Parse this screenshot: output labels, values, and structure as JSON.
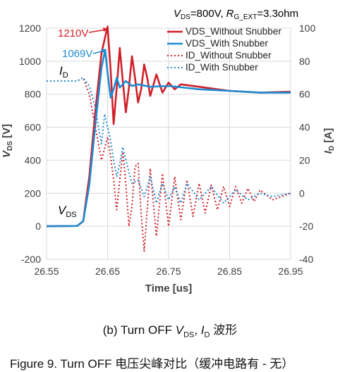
{
  "chart_data": {
    "type": "line",
    "condition": {
      "prefix": "V",
      "prefix_sub": "DS",
      "value": "=800V, ",
      "rg": "R",
      "rg_sub": "G_EXT",
      "rg_value": "=3.3ohm"
    },
    "xlabel": "Time [us]",
    "ylabel_left": {
      "main": "V",
      "sub": "DS",
      "unit": " [V]"
    },
    "ylabel_right": {
      "main": "I",
      "sub": "D",
      "unit": " [A]"
    },
    "xlim": [
      26.55,
      26.95
    ],
    "ylim_left": [
      -200,
      1200
    ],
    "ylim_right": [
      -40,
      100
    ],
    "x_ticks": [
      "26.55",
      "26.65",
      "26.75",
      "26.85",
      "26.95"
    ],
    "y_left_ticks": [
      "-200",
      "0",
      "200",
      "400",
      "600",
      "800",
      "1000",
      "1200"
    ],
    "y_right_ticks": [
      "-40",
      "-20",
      "0",
      "20",
      "40",
      "60",
      "80",
      "100"
    ],
    "grid": true,
    "legend_position": "top-right",
    "series": [
      {
        "name": "VDS_Without Snubber",
        "axis": "left",
        "color": "#d0202a",
        "style": "solid",
        "points": [
          [
            26.55,
            0
          ],
          [
            26.6,
            2
          ],
          [
            26.61,
            30
          ],
          [
            26.62,
            300
          ],
          [
            26.63,
            700
          ],
          [
            26.64,
            1050
          ],
          [
            26.65,
            1210
          ],
          [
            26.655,
            950
          ],
          [
            26.66,
            620
          ],
          [
            26.665,
            840
          ],
          [
            26.67,
            1080
          ],
          [
            26.675,
            880
          ],
          [
            26.68,
            690
          ],
          [
            26.685,
            840
          ],
          [
            26.69,
            1030
          ],
          [
            26.695,
            900
          ],
          [
            26.7,
            750
          ],
          [
            26.705,
            830
          ],
          [
            26.71,
            980
          ],
          [
            26.715,
            900
          ],
          [
            26.72,
            790
          ],
          [
            26.73,
            920
          ],
          [
            26.74,
            810
          ],
          [
            26.75,
            870
          ],
          [
            26.76,
            830
          ],
          [
            26.77,
            860
          ],
          [
            26.8,
            845
          ],
          [
            26.85,
            820
          ],
          [
            26.9,
            810
          ],
          [
            26.95,
            815
          ]
        ]
      },
      {
        "name": "VDS_With Snubber",
        "axis": "left",
        "color": "#1f8ad0",
        "style": "solid",
        "points": [
          [
            26.55,
            0
          ],
          [
            26.6,
            2
          ],
          [
            26.61,
            30
          ],
          [
            26.62,
            250
          ],
          [
            26.63,
            620
          ],
          [
            26.64,
            960
          ],
          [
            26.646,
            1069
          ],
          [
            26.65,
            930
          ],
          [
            26.655,
            780
          ],
          [
            26.66,
            830
          ],
          [
            26.665,
            900
          ],
          [
            26.67,
            840
          ],
          [
            26.68,
            880
          ],
          [
            26.69,
            850
          ],
          [
            26.7,
            860
          ],
          [
            26.72,
            845
          ],
          [
            26.75,
            850
          ],
          [
            26.8,
            830
          ],
          [
            26.85,
            820
          ],
          [
            26.9,
            810
          ],
          [
            26.95,
            810
          ]
        ]
      },
      {
        "name": "ID_Without Snubber",
        "axis": "right",
        "color": "#d0202a",
        "style": "dotted",
        "points": [
          [
            26.55,
            68
          ],
          [
            26.6,
            68
          ],
          [
            26.61,
            70
          ],
          [
            26.62,
            60
          ],
          [
            26.63,
            40
          ],
          [
            26.64,
            20
          ],
          [
            26.65,
            34
          ],
          [
            26.655,
            22
          ],
          [
            26.66,
            8
          ],
          [
            26.665,
            -10
          ],
          [
            26.67,
            8
          ],
          [
            26.675,
            25
          ],
          [
            26.68,
            6
          ],
          [
            26.685,
            -20
          ],
          [
            26.69,
            -8
          ],
          [
            26.695,
            16
          ],
          [
            26.7,
            18
          ],
          [
            26.705,
            -12
          ],
          [
            26.71,
            -35
          ],
          [
            26.715,
            -10
          ],
          [
            26.72,
            15
          ],
          [
            26.73,
            -26
          ],
          [
            26.74,
            12
          ],
          [
            26.75,
            -20
          ],
          [
            26.76,
            10
          ],
          [
            26.77,
            -16
          ],
          [
            26.78,
            8
          ],
          [
            26.79,
            -14
          ],
          [
            26.8,
            6
          ],
          [
            26.81,
            -12
          ],
          [
            26.82,
            5
          ],
          [
            26.83,
            -10
          ],
          [
            26.84,
            4
          ],
          [
            26.85,
            -8
          ],
          [
            26.86,
            4
          ],
          [
            26.87,
            -6
          ],
          [
            26.88,
            3
          ],
          [
            26.89,
            -5
          ],
          [
            26.9,
            2
          ],
          [
            26.92,
            -4
          ],
          [
            26.95,
            0
          ]
        ]
      },
      {
        "name": "ID_With Snubber",
        "axis": "right",
        "color": "#1f8ad0",
        "style": "dotted",
        "points": [
          [
            26.55,
            68
          ],
          [
            26.6,
            68
          ],
          [
            26.61,
            70
          ],
          [
            26.62,
            65
          ],
          [
            26.63,
            52
          ],
          [
            26.635,
            40
          ],
          [
            26.64,
            30
          ],
          [
            26.645,
            48
          ],
          [
            26.65,
            40
          ],
          [
            26.655,
            32
          ],
          [
            26.66,
            20
          ],
          [
            26.665,
            10
          ],
          [
            26.67,
            18
          ],
          [
            26.675,
            28
          ],
          [
            26.68,
            20
          ],
          [
            26.69,
            6
          ],
          [
            26.7,
            8
          ],
          [
            26.71,
            -2
          ],
          [
            26.72,
            10
          ],
          [
            26.73,
            -6
          ],
          [
            26.74,
            6
          ],
          [
            26.75,
            -4
          ],
          [
            26.76,
            4
          ],
          [
            26.77,
            -6
          ],
          [
            26.78,
            6
          ],
          [
            26.8,
            -4
          ],
          [
            26.82,
            4
          ],
          [
            26.84,
            -6
          ],
          [
            26.86,
            2
          ],
          [
            26.88,
            -4
          ],
          [
            26.9,
            0
          ],
          [
            26.92,
            -2
          ],
          [
            26.95,
            0
          ]
        ]
      }
    ],
    "annotations": {
      "peak_without": {
        "text": "1210V",
        "x": 26.65,
        "y": 1210
      },
      "peak_with": {
        "text": "1069V",
        "x": 26.646,
        "y": 1069
      },
      "id_label": {
        "main": "I",
        "sub": "D"
      },
      "vds_label": {
        "main": "V",
        "sub": "DS"
      }
    }
  },
  "subcaption": {
    "prefix": "(b) Turn OFF  ",
    "v": "V",
    "v_sub": "DS",
    "sep": ", ",
    "i": "I",
    "i_sub": "D",
    "suffix": " 波形"
  },
  "figcaption": "Figure 9. Turn OFF 电压尖峰对比（缓冲电路有 - 无）"
}
